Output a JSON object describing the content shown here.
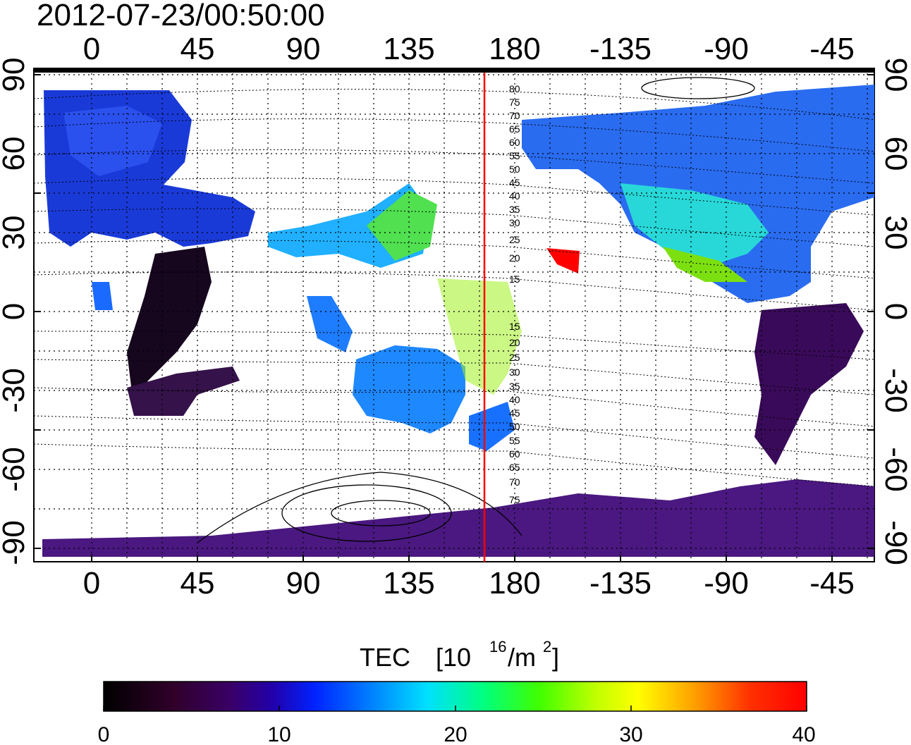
{
  "timestamp": "2012-07-23/00:50:00",
  "colorbar": {
    "title_main": "TEC",
    "title_unit_base": "[10",
    "title_unit_exp": "16",
    "title_unit_mid": "/m",
    "title_unit_exp2": "2",
    "title_unit_end": "]",
    "ticks": [
      "0",
      "10",
      "20",
      "30",
      "40"
    ],
    "colors": [
      "#000000",
      "#30002a",
      "#3a0066",
      "#2200aa",
      "#0022ff",
      "#0080ff",
      "#00e0ff",
      "#00ff80",
      "#40ff00",
      "#c0ff00",
      "#ffff00",
      "#ffa000",
      "#ff3000",
      "#ff0000"
    ]
  },
  "axes": {
    "x_ticks_top": [
      "0",
      "45",
      "90",
      "135",
      "180",
      "-135",
      "-90",
      "-45"
    ],
    "x_ticks_bottom": [
      "0",
      "45",
      "90",
      "135",
      "180",
      "-135",
      "-90",
      "-45"
    ],
    "y_ticks_left": [
      "90",
      "60",
      "30",
      "0",
      "-30",
      "-60",
      "-90"
    ],
    "y_ticks_right": [
      "90",
      "60",
      "30",
      "0",
      "-30",
      "-60",
      "-90"
    ]
  },
  "meridian_line": {
    "longitude": 168,
    "color": "#ff0000"
  },
  "contour_labels_north": [
    "80",
    "75",
    "70",
    "65",
    "60",
    "55",
    "50",
    "45",
    "40",
    "35",
    "30",
    "25",
    "20",
    "15"
  ],
  "contour_labels_south": [
    "15",
    "20",
    "25",
    "30",
    "35",
    "40",
    "45",
    "50",
    "55",
    "60",
    "65",
    "70",
    "75"
  ]
}
